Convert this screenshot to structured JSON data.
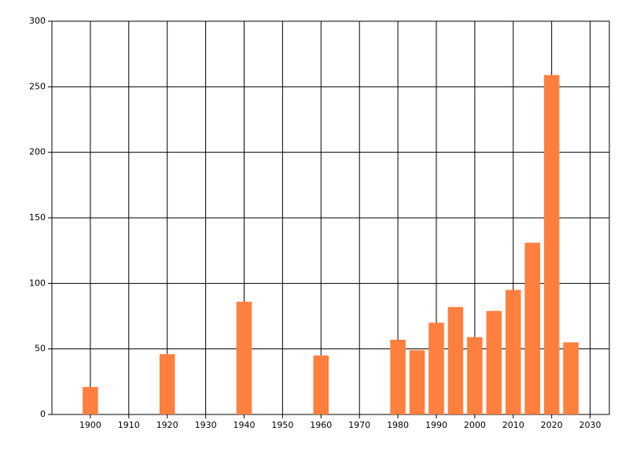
{
  "chart_data": {
    "type": "bar",
    "x": [
      1900,
      1920,
      1940,
      1960,
      1980,
      1985,
      1990,
      1995,
      2000,
      2005,
      2010,
      2015,
      2020,
      2025
    ],
    "values": [
      21,
      46,
      86,
      45,
      57,
      49,
      70,
      82,
      59,
      79,
      95,
      131,
      259,
      55
    ],
    "color": "#ff7f3f",
    "xlim": [
      1890,
      2035
    ],
    "xticks": [
      1900,
      1910,
      1920,
      1930,
      1940,
      1950,
      1960,
      1970,
      1980,
      1990,
      2000,
      2010,
      2020,
      2030
    ],
    "ylim": [
      0,
      300
    ],
    "yticks": [
      0,
      50,
      100,
      150,
      200,
      250,
      300
    ],
    "grid": true
  }
}
